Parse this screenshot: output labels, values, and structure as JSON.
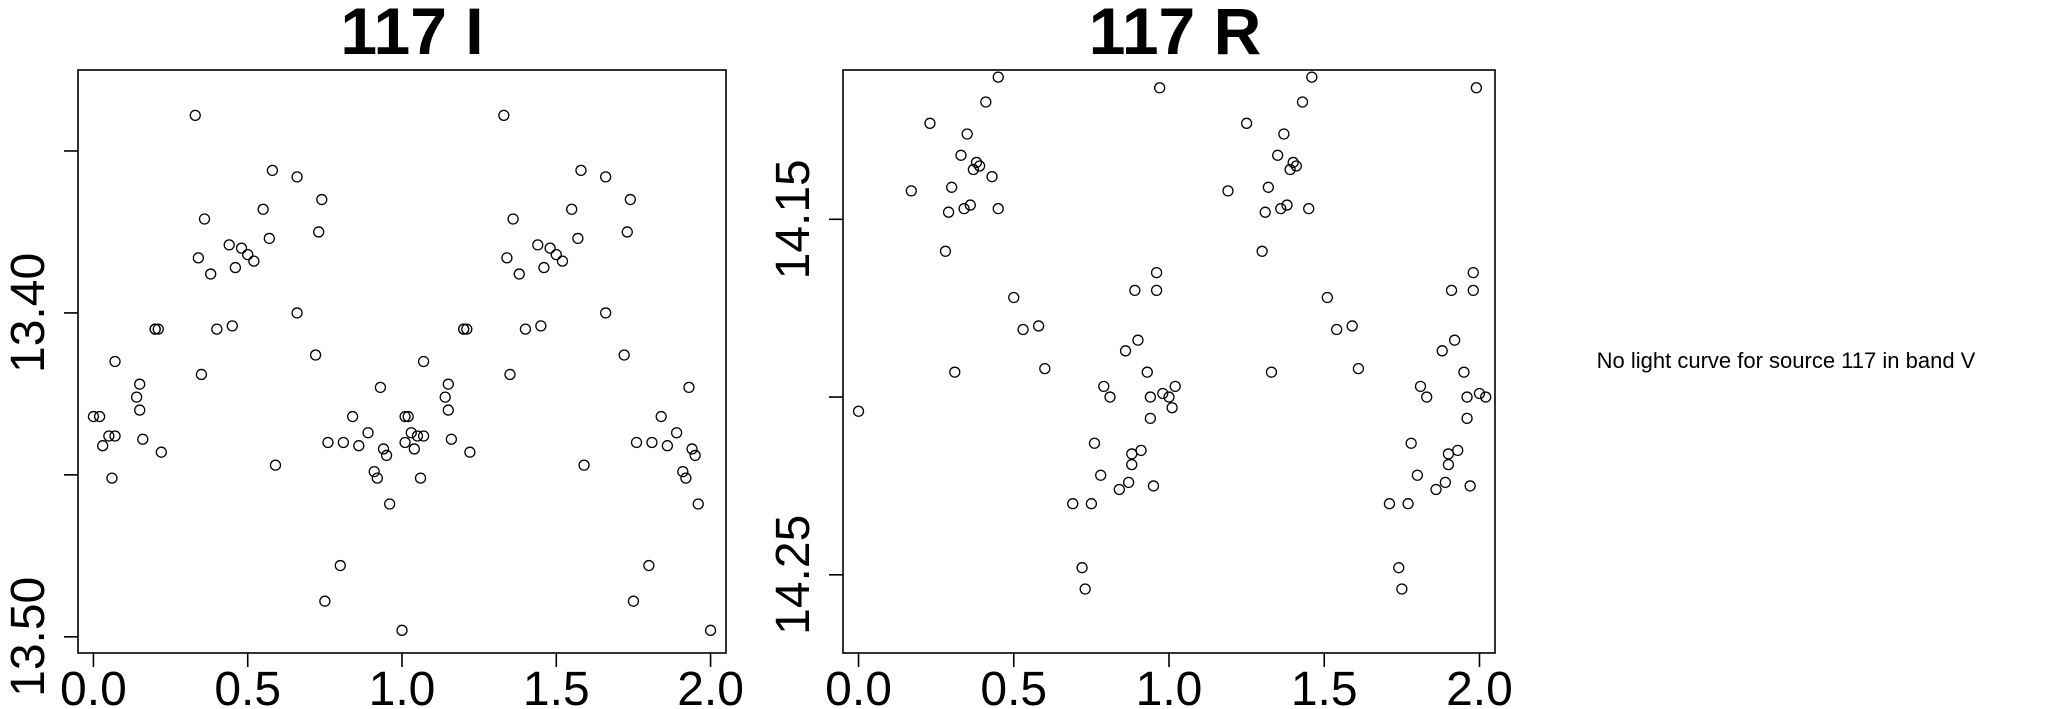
{
  "chart_data": [
    {
      "type": "scatter",
      "title": "117 I",
      "xlim": [
        -0.05,
        2.05
      ],
      "ylim": [
        13.505,
        13.325
      ],
      "x_ticks": [
        "0.0",
        "0.5",
        "1.0",
        "1.5",
        "2.0"
      ],
      "y_ticks": [
        "13.40",
        "13.50"
      ],
      "grid": false,
      "points": [
        [
          0.0,
          13.432
        ],
        [
          0.02,
          13.432
        ],
        [
          0.03,
          13.441
        ],
        [
          0.05,
          13.438
        ],
        [
          0.06,
          13.451
        ],
        [
          0.07,
          13.438
        ],
        [
          0.07,
          13.415
        ],
        [
          0.14,
          13.426
        ],
        [
          0.15,
          13.422
        ],
        [
          0.15,
          13.43
        ],
        [
          0.16,
          13.439
        ],
        [
          0.2,
          13.405
        ],
        [
          0.2,
          13.405
        ],
        [
          0.21,
          13.405
        ],
        [
          0.22,
          13.443
        ],
        [
          0.33,
          13.339
        ],
        [
          0.34,
          13.383
        ],
        [
          0.35,
          13.419
        ],
        [
          0.36,
          13.371
        ],
        [
          0.38,
          13.388
        ],
        [
          0.4,
          13.405
        ],
        [
          0.44,
          13.379
        ],
        [
          0.45,
          13.404
        ],
        [
          0.46,
          13.386
        ],
        [
          0.48,
          13.38
        ],
        [
          0.5,
          13.382
        ],
        [
          0.52,
          13.384
        ],
        [
          0.55,
          13.368
        ],
        [
          0.57,
          13.377
        ],
        [
          0.58,
          13.356
        ],
        [
          0.59,
          13.447
        ],
        [
          0.66,
          13.4
        ],
        [
          0.66,
          13.358
        ],
        [
          0.72,
          13.413
        ],
        [
          0.73,
          13.375
        ],
        [
          0.74,
          13.365
        ],
        [
          0.75,
          13.489
        ],
        [
          0.76,
          13.44
        ],
        [
          0.8,
          13.478
        ],
        [
          0.81,
          13.44
        ],
        [
          0.84,
          13.432
        ],
        [
          0.86,
          13.441
        ],
        [
          0.89,
          13.437
        ],
        [
          0.91,
          13.449
        ],
        [
          0.92,
          13.451
        ],
        [
          0.93,
          13.423
        ],
        [
          0.94,
          13.442
        ],
        [
          0.95,
          13.444
        ],
        [
          0.96,
          13.459
        ],
        [
          1.0,
          13.498
        ],
        [
          1.01,
          13.44
        ],
        [
          1.01,
          13.432
        ],
        [
          1.02,
          13.432
        ],
        [
          1.03,
          13.437
        ],
        [
          1.04,
          13.442
        ],
        [
          1.05,
          13.438
        ],
        [
          1.06,
          13.451
        ],
        [
          1.07,
          13.438
        ],
        [
          1.07,
          13.415
        ],
        [
          1.14,
          13.426
        ],
        [
          1.15,
          13.422
        ],
        [
          1.15,
          13.43
        ],
        [
          1.16,
          13.439
        ],
        [
          1.2,
          13.405
        ],
        [
          1.2,
          13.405
        ],
        [
          1.21,
          13.405
        ],
        [
          1.22,
          13.443
        ],
        [
          1.33,
          13.339
        ],
        [
          1.34,
          13.383
        ],
        [
          1.35,
          13.419
        ],
        [
          1.36,
          13.371
        ],
        [
          1.38,
          13.388
        ],
        [
          1.4,
          13.405
        ],
        [
          1.44,
          13.379
        ],
        [
          1.45,
          13.404
        ],
        [
          1.46,
          13.386
        ],
        [
          1.48,
          13.38
        ],
        [
          1.5,
          13.382
        ],
        [
          1.52,
          13.384
        ],
        [
          1.55,
          13.368
        ],
        [
          1.57,
          13.377
        ],
        [
          1.58,
          13.356
        ],
        [
          1.59,
          13.447
        ],
        [
          1.66,
          13.4
        ],
        [
          1.66,
          13.358
        ],
        [
          1.72,
          13.413
        ],
        [
          1.73,
          13.375
        ],
        [
          1.74,
          13.365
        ],
        [
          1.75,
          13.489
        ],
        [
          1.76,
          13.44
        ],
        [
          1.8,
          13.478
        ],
        [
          1.81,
          13.44
        ],
        [
          1.84,
          13.432
        ],
        [
          1.86,
          13.441
        ],
        [
          1.89,
          13.437
        ],
        [
          1.91,
          13.449
        ],
        [
          1.92,
          13.451
        ],
        [
          1.93,
          13.423
        ],
        [
          1.94,
          13.442
        ],
        [
          1.95,
          13.444
        ],
        [
          1.96,
          13.459
        ],
        [
          2.0,
          13.498
        ]
      ]
    },
    {
      "type": "scatter",
      "title": "117 R",
      "xlim": [
        -0.05,
        2.05
      ],
      "ylim": [
        14.272,
        14.108
      ],
      "x_ticks": [
        "0.0",
        "0.5",
        "1.0",
        "1.5",
        "2.0"
      ],
      "y_ticks": [
        "14.15",
        "14.25"
      ],
      "grid": false,
      "points": [
        [
          0.0,
          14.204
        ],
        [
          0.17,
          14.142
        ],
        [
          0.23,
          14.123
        ],
        [
          0.28,
          14.159
        ],
        [
          0.29,
          14.148
        ],
        [
          0.3,
          14.141
        ],
        [
          0.31,
          14.193
        ],
        [
          0.33,
          14.132
        ],
        [
          0.34,
          14.147
        ],
        [
          0.35,
          14.126
        ],
        [
          0.36,
          14.146
        ],
        [
          0.37,
          14.136
        ],
        [
          0.38,
          14.134
        ],
        [
          0.39,
          14.135
        ],
        [
          0.41,
          14.117
        ],
        [
          0.43,
          14.138
        ],
        [
          0.45,
          14.147
        ],
        [
          0.45,
          14.11
        ],
        [
          0.5,
          14.172
        ],
        [
          0.53,
          14.181
        ],
        [
          0.58,
          14.18
        ],
        [
          0.6,
          14.192
        ],
        [
          0.69,
          14.23
        ],
        [
          0.72,
          14.248
        ],
        [
          0.73,
          14.254
        ],
        [
          0.75,
          14.23
        ],
        [
          0.76,
          14.213
        ],
        [
          0.78,
          14.222
        ],
        [
          0.79,
          14.197
        ],
        [
          0.81,
          14.2
        ],
        [
          0.84,
          14.226
        ],
        [
          0.86,
          14.187
        ],
        [
          0.87,
          14.224
        ],
        [
          0.88,
          14.219
        ],
        [
          0.88,
          14.216
        ],
        [
          0.89,
          14.17
        ],
        [
          0.9,
          14.184
        ],
        [
          0.91,
          14.215
        ],
        [
          0.93,
          14.193
        ],
        [
          0.94,
          14.206
        ],
        [
          0.94,
          14.2
        ],
        [
          0.95,
          14.225
        ],
        [
          0.96,
          14.165
        ],
        [
          0.96,
          14.17
        ],
        [
          0.97,
          14.113
        ],
        [
          0.98,
          14.199
        ],
        [
          1.0,
          14.2
        ],
        [
          1.01,
          14.203
        ],
        [
          1.02,
          14.197
        ],
        [
          1.19,
          14.142
        ],
        [
          1.25,
          14.123
        ],
        [
          1.3,
          14.159
        ],
        [
          1.31,
          14.148
        ],
        [
          1.32,
          14.141
        ],
        [
          1.33,
          14.193
        ],
        [
          1.35,
          14.132
        ],
        [
          1.36,
          14.147
        ],
        [
          1.37,
          14.126
        ],
        [
          1.38,
          14.146
        ],
        [
          1.39,
          14.136
        ],
        [
          1.4,
          14.134
        ],
        [
          1.41,
          14.135
        ],
        [
          1.43,
          14.117
        ],
        [
          1.45,
          14.147
        ],
        [
          1.46,
          14.11
        ],
        [
          1.51,
          14.172
        ],
        [
          1.54,
          14.181
        ],
        [
          1.59,
          14.18
        ],
        [
          1.61,
          14.192
        ],
        [
          1.71,
          14.23
        ],
        [
          1.74,
          14.248
        ],
        [
          1.75,
          14.254
        ],
        [
          1.77,
          14.23
        ],
        [
          1.78,
          14.213
        ],
        [
          1.8,
          14.222
        ],
        [
          1.81,
          14.197
        ],
        [
          1.83,
          14.2
        ],
        [
          1.86,
          14.226
        ],
        [
          1.88,
          14.187
        ],
        [
          1.89,
          14.224
        ],
        [
          1.9,
          14.219
        ],
        [
          1.9,
          14.216
        ],
        [
          1.91,
          14.17
        ],
        [
          1.92,
          14.184
        ],
        [
          1.93,
          14.215
        ],
        [
          1.95,
          14.193
        ],
        [
          1.96,
          14.206
        ],
        [
          1.96,
          14.2
        ],
        [
          1.97,
          14.225
        ],
        [
          1.98,
          14.165
        ],
        [
          1.98,
          14.17
        ],
        [
          1.99,
          14.113
        ],
        [
          2.0,
          14.199
        ],
        [
          2.02,
          14.2
        ]
      ]
    }
  ],
  "note": "No light curve for source 117 in band V"
}
